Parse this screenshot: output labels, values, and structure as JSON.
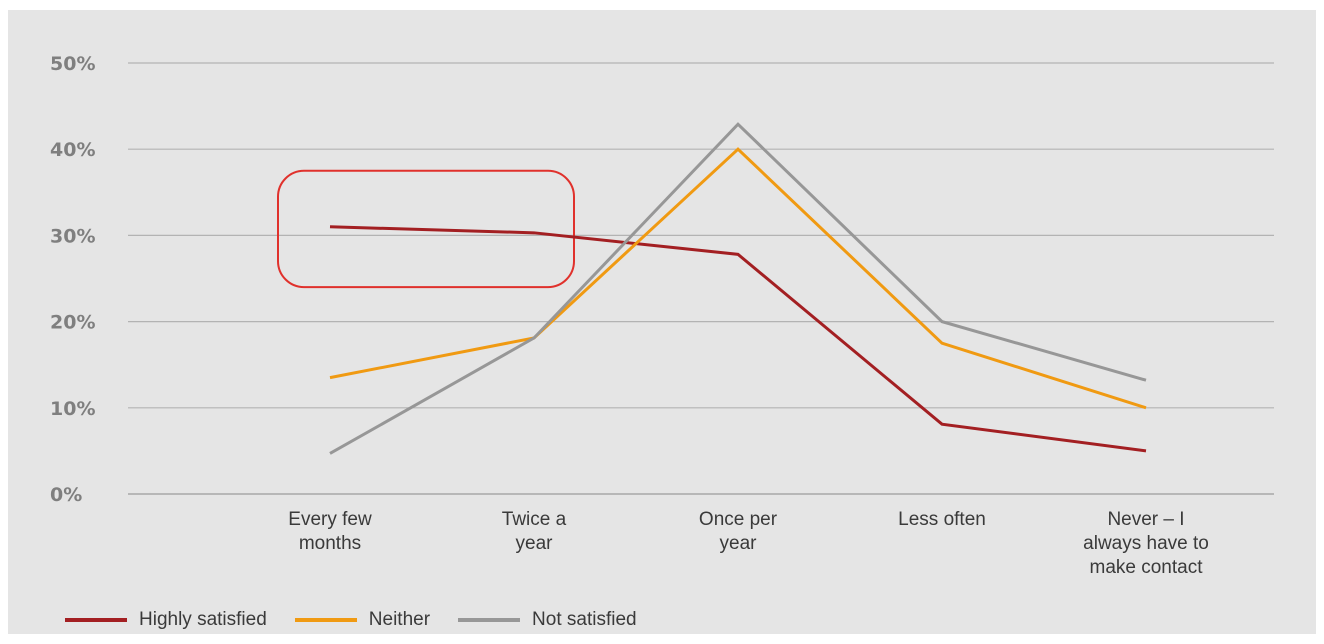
{
  "chart_data": {
    "type": "line",
    "categories": [
      [
        "Every few",
        "months"
      ],
      [
        "Twice a",
        "year"
      ],
      [
        "Once per",
        "year"
      ],
      [
        "Less often"
      ],
      [
        "Never – I",
        "always have to",
        "make contact"
      ]
    ],
    "series": [
      {
        "name": "Highly satisfied",
        "color": "#a31f22",
        "values": [
          31,
          30.3,
          27.8,
          8.1,
          5
        ]
      },
      {
        "name": "Neither",
        "color": "#f09a12",
        "values": [
          13.5,
          18.1,
          40,
          17.5,
          10
        ]
      },
      {
        "name": "Not satisfied",
        "color": "#979797",
        "values": [
          4.7,
          18.1,
          42.9,
          20,
          13.2
        ]
      }
    ],
    "y_ticks": [
      "0%",
      "10%",
      "20%",
      "30%",
      "40%",
      "50%"
    ],
    "ylim": [
      0,
      50
    ],
    "grid": true,
    "legend_position": "bottom-left",
    "highlight": {
      "color": "#e0312c",
      "categories": [
        0,
        1
      ],
      "y_range": [
        24,
        37.5
      ]
    }
  }
}
